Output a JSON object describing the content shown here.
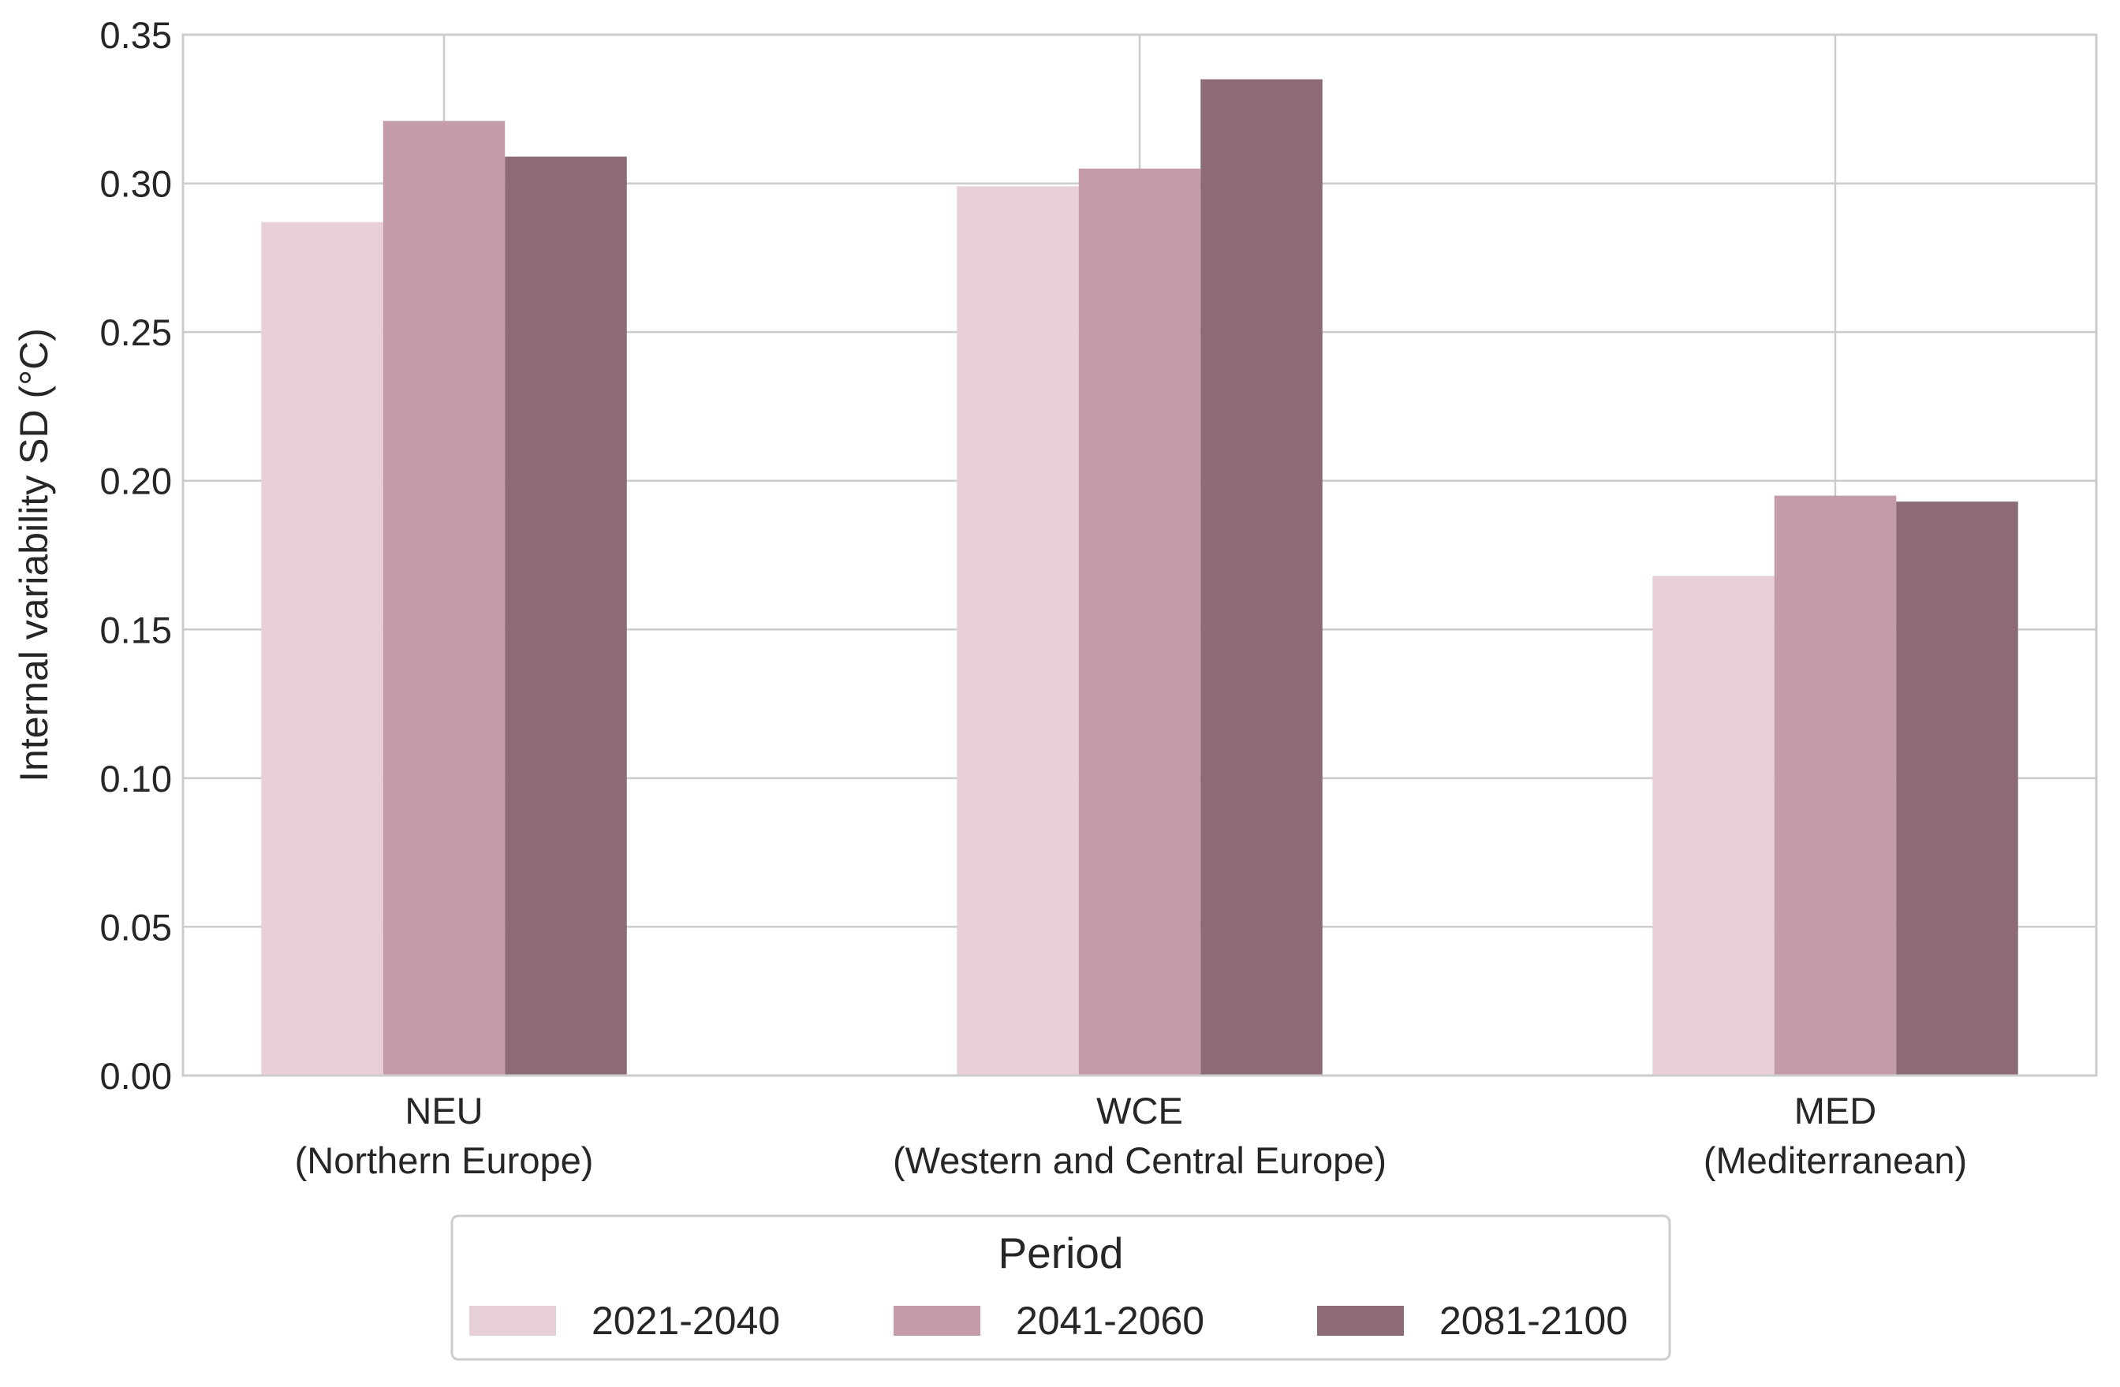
{
  "chart_data": {
    "type": "bar",
    "title": "",
    "xlabel": "",
    "ylabel": "Internal variability SD (°C)",
    "ylim": [
      0,
      0.35
    ],
    "yticks": [
      0.0,
      0.05,
      0.1,
      0.15,
      0.2,
      0.25,
      0.3,
      0.35
    ],
    "ytick_labels": [
      "0.00",
      "0.05",
      "0.10",
      "0.15",
      "0.20",
      "0.25",
      "0.30",
      "0.35"
    ],
    "categories": [
      {
        "code": "NEU",
        "name": "(Northern Europe)"
      },
      {
        "code": "WCE",
        "name": "(Western and Central Europe)"
      },
      {
        "code": "MED",
        "name": "(Mediterranean)"
      }
    ],
    "series": [
      {
        "name": "2021-2040",
        "color": "#e7d0d6",
        "values": [
          0.287,
          0.299,
          0.168
        ]
      },
      {
        "name": "2041-2060",
        "color": "#c49ba8",
        "values": [
          0.321,
          0.305,
          0.195
        ]
      },
      {
        "name": "2081-2100",
        "color": "#8c6b74",
        "values": [
          0.309,
          0.335,
          0.193
        ]
      }
    ],
    "grid": true,
    "legend": {
      "title": "Period",
      "placement": "bottom-center",
      "columns": 3
    },
    "colors": {
      "grid": "#cccccc",
      "frame": "#cccccc",
      "text": "#262626"
    }
  }
}
